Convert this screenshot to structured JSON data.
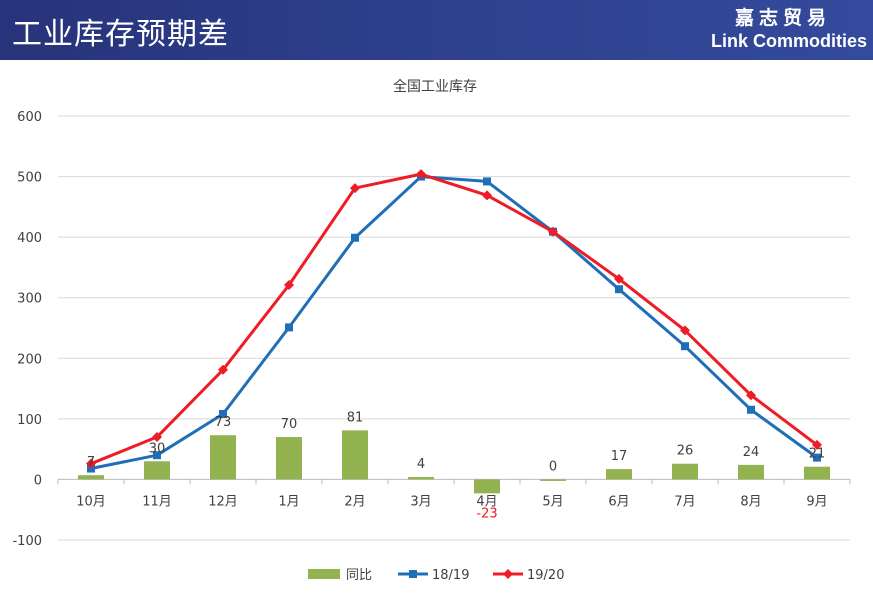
{
  "header": {
    "title": "工业库存预期差",
    "brand_cn": "嘉志贸易",
    "brand_en": "Link Commodities"
  },
  "colors": {
    "bar": "#93b351",
    "line1": "#1f6fb8",
    "line2": "#ee1c24",
    "negative_label": "#ee1c24",
    "grid": "#d9d9d9",
    "text": "#404040"
  },
  "chart_data": {
    "type": "bar",
    "title": "全国工业库存",
    "categories": [
      "10月",
      "11月",
      "12月",
      "1月",
      "2月",
      "3月",
      "4月",
      "5月",
      "6月",
      "7月",
      "8月",
      "9月"
    ],
    "ylim": [
      -100,
      600
    ],
    "yticks": [
      -100,
      0,
      100,
      200,
      300,
      400,
      500,
      600
    ],
    "grid": true,
    "legend_position": "bottom",
    "series": [
      {
        "name": "同比",
        "type": "bar",
        "values": [
          7,
          30,
          73,
          70,
          81,
          4,
          -23,
          0,
          17,
          26,
          24,
          21
        ]
      },
      {
        "name": "18/19",
        "type": "line",
        "marker": "square",
        "values": [
          18,
          40,
          108,
          251,
          399,
          500,
          492,
          409,
          314,
          220,
          115,
          36
        ]
      },
      {
        "name": "19/20",
        "type": "line",
        "marker": "diamond",
        "values": [
          26,
          70,
          181,
          321,
          481,
          504,
          469,
          409,
          331,
          246,
          139,
          57
        ]
      }
    ]
  }
}
